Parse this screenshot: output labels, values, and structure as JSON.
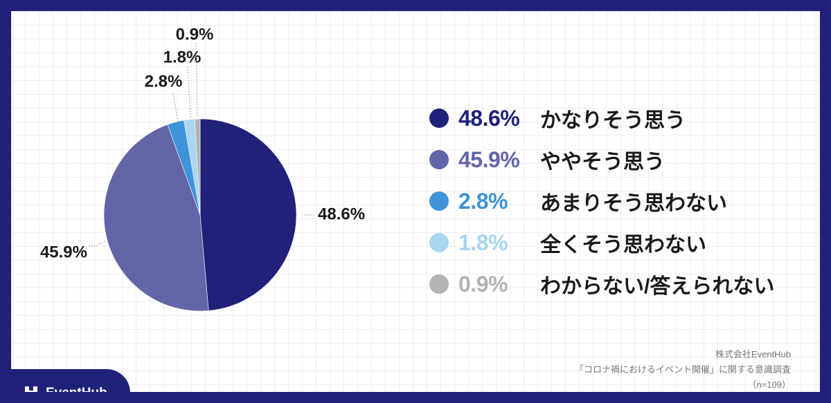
{
  "chart_data": {
    "type": "pie",
    "slices": [
      {
        "label": "かなりそう思う",
        "value": 48.6,
        "pct_label": "48.6%",
        "color": "#1f2278"
      },
      {
        "label": "ややそう思う",
        "value": 45.9,
        "pct_label": "45.9%",
        "color": "#6266a8"
      },
      {
        "label": "あまりそう思わない",
        "value": 2.8,
        "pct_label": "2.8%",
        "color": "#3f93d8"
      },
      {
        "label": "全くそう思わない",
        "value": 1.8,
        "pct_label": "1.8%",
        "color": "#a9d6f0"
      },
      {
        "label": "わからない/答えられない",
        "value": 0.9,
        "pct_label": "0.9%",
        "color": "#b3b3b3"
      }
    ],
    "start": "12 o'clock",
    "direction": "clockwise",
    "legend_position": "right"
  },
  "brand": {
    "name": "EventHub",
    "icon": "eventhub-logo-icon"
  },
  "source": {
    "company": "株式会社EventHub",
    "survey": "「コロナ禍におけるイベント開催」に関する意識調査",
    "sample": "（n=109）"
  }
}
